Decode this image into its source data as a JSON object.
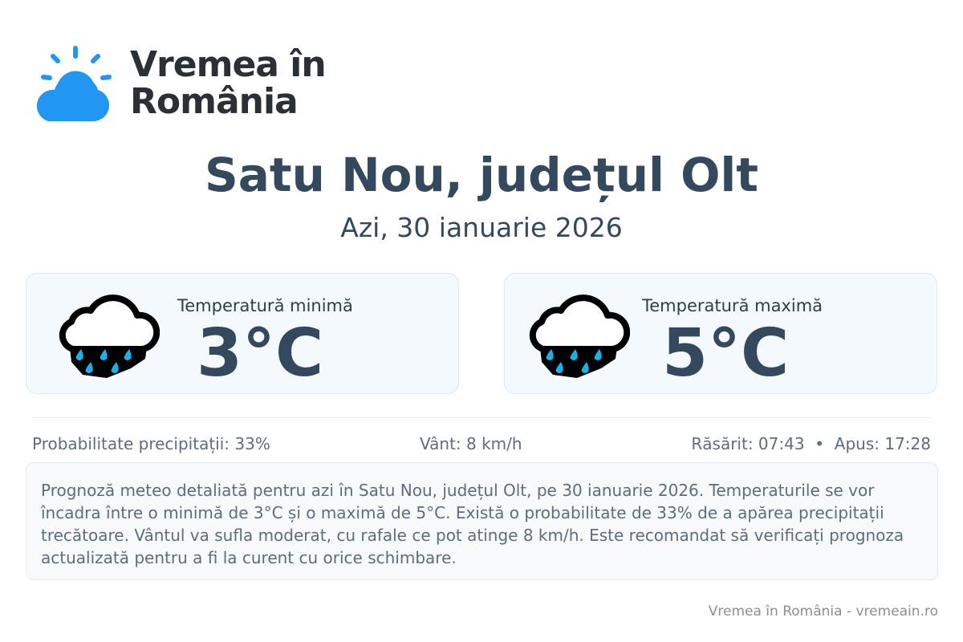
{
  "logo": {
    "line1": "Vremea în",
    "line2": "România",
    "color": "#2196f3"
  },
  "header": {
    "title": "Satu Nou, județul Olt",
    "subtitle": "Azi, 30 ianuarie 2026"
  },
  "cards": [
    {
      "label": "Temperatură minimă",
      "value": "3°C",
      "icon": "rain-cloud-icon"
    },
    {
      "label": "Temperatură maximă",
      "value": "5°C",
      "icon": "rain-cloud-icon"
    }
  ],
  "stats": {
    "precipitation": "Probabilitate precipitații: 33%",
    "wind": "Vânt: 8 km/h",
    "sun": "Răsărit: 07:43  •  Apus: 17:28"
  },
  "description": "Prognoză meteo detaliată pentru azi în Satu Nou, județul Olt, pe 30 ianuarie 2026. Temperaturile se vor încadra între o minimă de 3°C și o maximă de 5°C. Există o probabilitate de 33% de a apărea precipitații trecătoare. Vântul va sufla moderat, cu rafale ce pot atinge 8 km/h. Este recomandat să verificați prognoza actualizată pentru a fi la curent cu orice schimbare.",
  "footer": "Vremea în România - vremeain.ro"
}
